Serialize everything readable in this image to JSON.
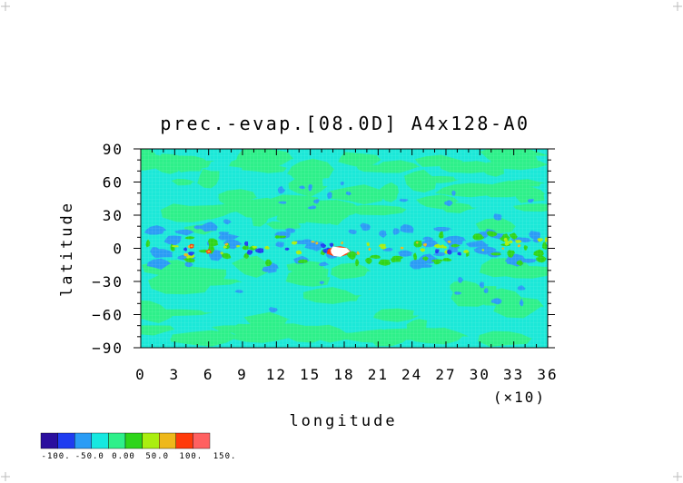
{
  "chart_data": {
    "type": "heatmap",
    "title": "prec.-evap.[08.0D] A4x128-A0",
    "xlabel": "longitude",
    "ylabel": "latitude",
    "x_scale_note": "(×10)",
    "xlim": [
      0,
      36
    ],
    "ylim": [
      -90,
      90
    ],
    "x_ticks": [
      "0",
      "3",
      "6",
      "9",
      "12",
      "15",
      "18",
      "21",
      "24",
      "27",
      "30",
      "33",
      "36"
    ],
    "y_ticks": [
      "90",
      "60",
      "30",
      "0",
      "−30",
      "−60",
      "−90"
    ],
    "colorbar": {
      "labels": [
        "-100.",
        "-50.0",
        "0.00",
        "50.0",
        "100.",
        "150."
      ],
      "colors": [
        "#2b0f9e",
        "#1f3cf0",
        "#2a9cf5",
        "#16e8e0",
        "#2ef08a",
        "#2ed51a",
        "#aaee10",
        "#eeb81a",
        "#ff3a0a",
        "#ff6060"
      ]
    },
    "background_level_color": "#1ce8d8",
    "features": [
      {
        "lon": 175,
        "lat": -3,
        "value": ">150",
        "note": "maximum near equator"
      },
      {
        "lon": 45,
        "lat": 2,
        "value": "100-150"
      },
      {
        "lon": 60,
        "lat": -3,
        "value": "100-150"
      },
      {
        "lon": 105,
        "lat": -2,
        "value": "-100 to -50"
      },
      {
        "lon": 165,
        "lat": -2,
        "value": "-100 to -50"
      }
    ]
  }
}
